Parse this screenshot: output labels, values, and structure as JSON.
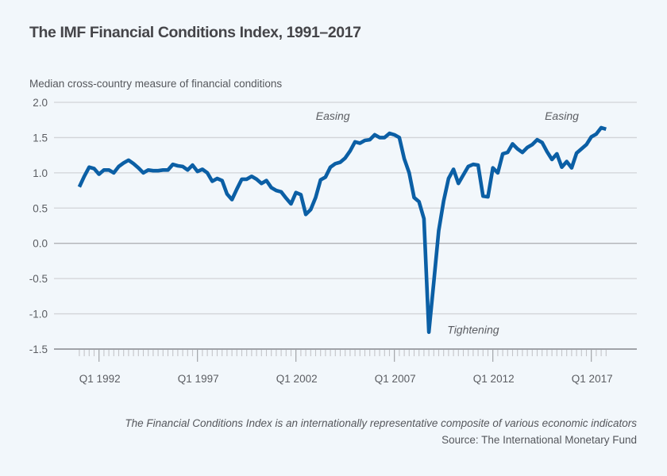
{
  "chart_data": {
    "type": "line",
    "title": "The IMF Financial Conditions Index, 1991–2017",
    "ylabel": "Median cross-country measure of financial conditions",
    "xlabel": "",
    "ylim": [
      -1.5,
      2.0
    ],
    "yticks": [
      2.0,
      1.5,
      1.0,
      0.5,
      0.0,
      -0.5,
      -1.0,
      -1.5
    ],
    "ytick_labels": [
      "2.0",
      "1.5",
      "1.0",
      "0.5",
      "0.0",
      "-0.5",
      "-1.0",
      "-1.5"
    ],
    "x_start": "Q1 1991",
    "x_end": "Q4 2017",
    "x_frequency": "quarterly",
    "xtick_labels": [
      {
        "label": "Q1 1992",
        "year": 1992
      },
      {
        "label": "Q1 1997",
        "year": 1997
      },
      {
        "label": "Q1 2002",
        "year": 2002
      },
      {
        "label": "Q1 2007",
        "year": 2007
      },
      {
        "label": "Q1 2012",
        "year": 2012
      },
      {
        "label": "Q1 2017",
        "year": 2017
      }
    ],
    "grid": true,
    "series": [
      {
        "name": "Financial Conditions Index",
        "color": "#0b5fa5",
        "values": [
          0.8,
          0.95,
          1.08,
          1.06,
          0.98,
          1.04,
          1.04,
          1.0,
          1.09,
          1.14,
          1.18,
          1.13,
          1.07,
          1.0,
          1.04,
          1.03,
          1.03,
          1.04,
          1.04,
          1.12,
          1.1,
          1.09,
          1.04,
          1.11,
          1.02,
          1.05,
          1.0,
          0.88,
          0.92,
          0.89,
          0.7,
          0.62,
          0.77,
          0.91,
          0.91,
          0.95,
          0.91,
          0.85,
          0.89,
          0.79,
          0.75,
          0.73,
          0.64,
          0.56,
          0.72,
          0.69,
          0.41,
          0.48,
          0.65,
          0.9,
          0.94,
          1.08,
          1.13,
          1.15,
          1.21,
          1.31,
          1.44,
          1.42,
          1.46,
          1.47,
          1.54,
          1.5,
          1.5,
          1.56,
          1.54,
          1.5,
          1.2,
          1.0,
          0.65,
          0.59,
          0.35,
          -1.26,
          -0.55,
          0.18,
          0.6,
          0.92,
          1.05,
          0.85,
          0.97,
          1.09,
          1.12,
          1.11,
          0.67,
          0.66,
          1.07,
          1.0,
          1.27,
          1.29,
          1.41,
          1.34,
          1.29,
          1.36,
          1.4,
          1.47,
          1.43,
          1.3,
          1.19,
          1.27,
          1.08,
          1.16,
          1.07,
          1.28,
          1.34,
          1.4,
          1.51,
          1.55,
          1.64,
          1.62
        ]
      }
    ],
    "annotations": [
      {
        "text": "Easing",
        "x_quarter_index": 51.5,
        "y": 1.75
      },
      {
        "text": "Tightening",
        "x_quarter_index": 80,
        "y": -1.28
      },
      {
        "text": "Easing",
        "x_quarter_index": 98,
        "y": 1.75
      }
    ],
    "footnote": "The Financial Conditions Index is an internationally representative composite of various economic indicators",
    "source": "Source: The International Monetary Fund"
  }
}
